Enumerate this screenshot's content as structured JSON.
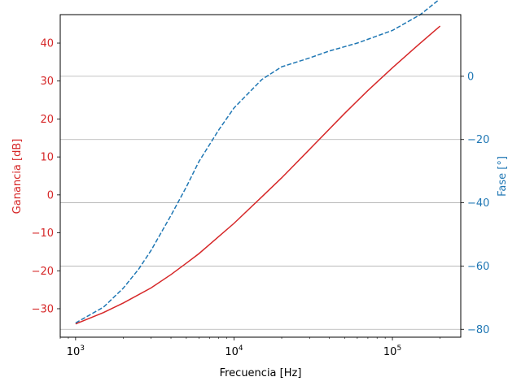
{
  "chart_data": {
    "type": "line",
    "xlabel": "Frecuencia [Hz]",
    "ylabel_left": "Ganancia [dB]",
    "ylabel_right": "Fase [°]",
    "x_scale": "log",
    "xlim": [
      800,
      270000
    ],
    "ylim_left": [
      -37.5,
      47.5
    ],
    "ylim_right": [
      -82.5,
      19.5
    ],
    "x_ticks": [
      {
        "value": 1000,
        "base": "10",
        "exp": "3"
      },
      {
        "value": 10000,
        "base": "10",
        "exp": "4"
      },
      {
        "value": 100000,
        "base": "10",
        "exp": "5"
      }
    ],
    "y_ticks_left": [
      "−30",
      "−20",
      "−10",
      "0",
      "10",
      "20",
      "30",
      "40"
    ],
    "y_ticks_left_values": [
      -30,
      -20,
      -10,
      0,
      10,
      20,
      30,
      40
    ],
    "y_ticks_right": [
      "−80",
      "−60",
      "−40",
      "−20",
      "0"
    ],
    "y_ticks_right_values": [
      -80,
      -60,
      -40,
      -20,
      0
    ],
    "grid": "horizontal lines at right-axis ticks",
    "colors": {
      "gain": "#d62728",
      "phase": "#1f77b4",
      "grid": "#b0b0b0",
      "axis": "#000000"
    },
    "series": [
      {
        "axis": "left",
        "style": "solid",
        "x": [
          1000,
          1500,
          2000,
          3000,
          4000,
          5000,
          6000,
          8000,
          10000,
          15000,
          20000,
          30000,
          50000,
          70000,
          100000,
          150000,
          200000
        ],
        "values": [
          -34,
          -31,
          -28.5,
          -24.5,
          -21,
          -18,
          -15.5,
          -11,
          -7.5,
          -0.5,
          4.5,
          12,
          21.5,
          27.5,
          33.5,
          40,
          44.5
        ]
      },
      {
        "axis": "right",
        "style": "dashed",
        "x": [
          1000,
          1500,
          2000,
          2500,
          3000,
          4000,
          5000,
          6000,
          8000,
          10000,
          15000,
          20000,
          30000,
          40000,
          60000,
          100000,
          150000,
          200000
        ],
        "values": [
          -78,
          -73,
          -67,
          -61,
          -55,
          -44,
          -35,
          -27,
          -17,
          -10,
          -1,
          3,
          5.8,
          8,
          10.5,
          14.5,
          19.5,
          24.5
        ]
      }
    ]
  }
}
